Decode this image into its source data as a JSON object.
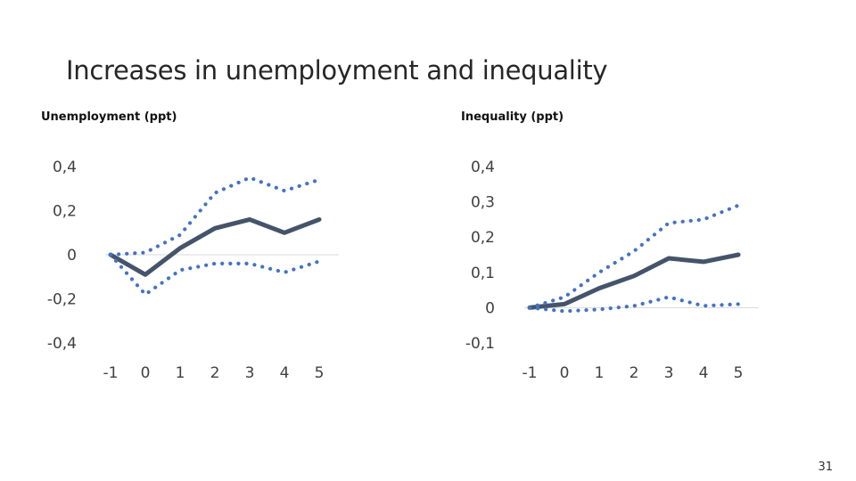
{
  "slide": {
    "title": "Increases in unemployment and inequality",
    "page_number": "31"
  },
  "colors": {
    "central_line": "#44546a",
    "band_dots": "#4472c4",
    "zero_line": "#d9d9d9",
    "tick_text": "#404040"
  },
  "chart_data": [
    {
      "type": "line",
      "title": "Unemployment (ppt)",
      "x": [
        -1,
        0,
        1,
        2,
        3,
        4,
        5
      ],
      "x_tick_labels": [
        "-1",
        "0",
        "1",
        "2",
        "3",
        "4",
        "5"
      ],
      "y_tick_labels": [
        "0,4",
        "0,2",
        "0",
        "-0,2",
        "-0,4"
      ],
      "y_ticks": [
        0.4,
        0.2,
        0,
        -0.2,
        -0.4
      ],
      "ylim": [
        -0.4,
        0.4
      ],
      "grid": false,
      "legend": "none",
      "series": [
        {
          "style": "solid",
          "values": [
            0.0,
            -0.09,
            0.03,
            0.12,
            0.16,
            0.1,
            0.16
          ]
        },
        {
          "style": "dotted",
          "values": [
            0.0,
            0.01,
            0.09,
            0.28,
            0.35,
            0.29,
            0.34
          ]
        },
        {
          "style": "dotted",
          "values": [
            0.0,
            -0.18,
            -0.07,
            -0.04,
            -0.04,
            -0.08,
            -0.03
          ]
        }
      ]
    },
    {
      "type": "line",
      "title": "Inequality (ppt)",
      "x": [
        -1,
        0,
        1,
        2,
        3,
        4,
        5
      ],
      "x_tick_labels": [
        "-1",
        "0",
        "1",
        "2",
        "3",
        "4",
        "5"
      ],
      "y_tick_labels": [
        "0,4",
        "0,3",
        "0,2",
        "0,1",
        "0",
        "-0,1"
      ],
      "y_ticks": [
        0.4,
        0.3,
        0.2,
        0.1,
        0,
        -0.1
      ],
      "ylim": [
        -0.1,
        0.4
      ],
      "grid": false,
      "legend": "none",
      "series": [
        {
          "style": "solid",
          "values": [
            0.0,
            0.01,
            0.055,
            0.09,
            0.14,
            0.13,
            0.15
          ]
        },
        {
          "style": "dotted",
          "values": [
            0.0,
            0.03,
            0.1,
            0.16,
            0.24,
            0.25,
            0.29
          ]
        },
        {
          "style": "dotted",
          "values": [
            0.0,
            -0.01,
            -0.005,
            0.005,
            0.03,
            0.005,
            0.01
          ]
        }
      ]
    }
  ]
}
